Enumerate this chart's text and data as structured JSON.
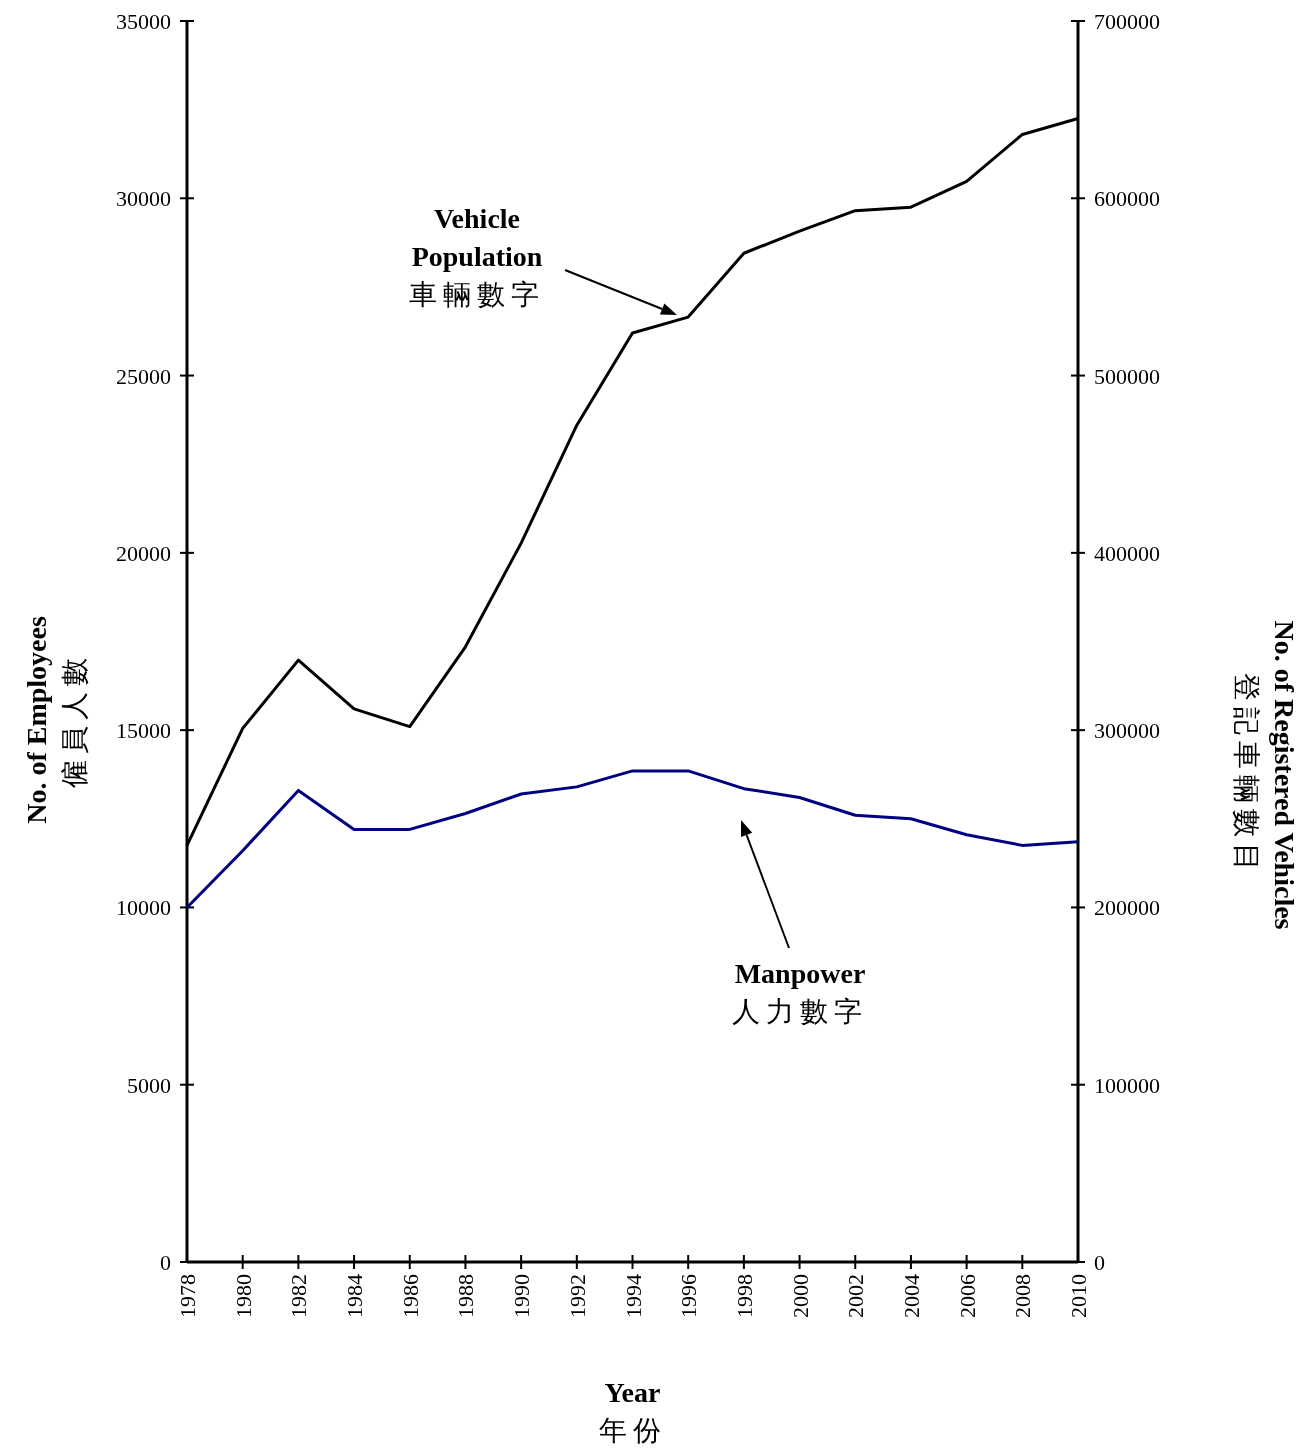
{
  "chart_data": {
    "type": "line",
    "x": [
      1978,
      1980,
      1982,
      1984,
      1986,
      1988,
      1990,
      1992,
      1994,
      1996,
      1998,
      2000,
      2002,
      2004,
      2006,
      2008,
      2010
    ],
    "series": [
      {
        "color": "#000000",
        "axis": "y2",
        "values": [
          235000,
          301000,
          339500,
          312000,
          302000,
          347000,
          405500,
          472000,
          524000,
          533000,
          569000,
          581500,
          593000,
          595000,
          609500,
          636000,
          645000
        ]
      },
      {
        "color": "#000080",
        "values": [
          10000,
          11600,
          13300,
          12200,
          12200,
          12650,
          13200,
          13400,
          13850,
          13850,
          13350,
          13100,
          12600,
          12500,
          12050,
          11750,
          11850
        ]
      }
    ],
    "xlim": [
      1978,
      2010
    ],
    "xticks": [
      1978,
      1980,
      1982,
      1984,
      1986,
      1988,
      1990,
      1992,
      1994,
      1996,
      1998,
      2000,
      2002,
      2004,
      2006,
      2008,
      2010
    ],
    "ylim": [
      0,
      35000
    ],
    "yticks": [
      0,
      5000,
      10000,
      15000,
      20000,
      25000,
      30000,
      35000
    ],
    "y2lim": [
      0,
      700000
    ],
    "y2ticks": [
      0,
      100000,
      200000,
      300000,
      400000,
      500000,
      600000,
      700000
    ],
    "xlabel": "Year\n年份",
    "ylabel": "No. of Employees\n僱員人數",
    "y2label": "No. of Registered Vehicles\n登記車輛數目",
    "annotations": [
      "Vehicle\nPopulation\n車輛數字",
      "Manpower\n人力數字"
    ]
  }
}
